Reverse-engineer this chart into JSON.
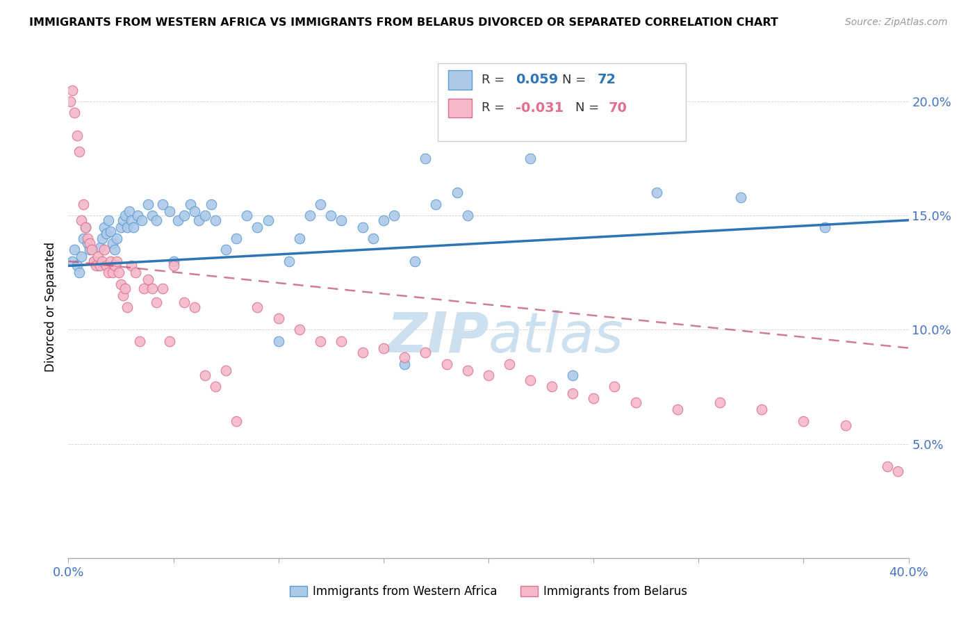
{
  "title": "IMMIGRANTS FROM WESTERN AFRICA VS IMMIGRANTS FROM BELARUS DIVORCED OR SEPARATED CORRELATION CHART",
  "source": "Source: ZipAtlas.com",
  "ylabel": "Divorced or Separated",
  "blue_scatter_x": [
    0.002,
    0.003,
    0.004,
    0.005,
    0.006,
    0.007,
    0.008,
    0.009,
    0.01,
    0.012,
    0.014,
    0.015,
    0.016,
    0.017,
    0.018,
    0.019,
    0.02,
    0.021,
    0.022,
    0.023,
    0.025,
    0.026,
    0.027,
    0.028,
    0.029,
    0.03,
    0.031,
    0.033,
    0.035,
    0.038,
    0.04,
    0.042,
    0.045,
    0.048,
    0.05,
    0.052,
    0.055,
    0.058,
    0.06,
    0.062,
    0.065,
    0.068,
    0.07,
    0.075,
    0.08,
    0.085,
    0.09,
    0.095,
    0.1,
    0.105,
    0.11,
    0.115,
    0.12,
    0.125,
    0.13,
    0.14,
    0.145,
    0.15,
    0.155,
    0.16,
    0.165,
    0.17,
    0.175,
    0.185,
    0.19,
    0.2,
    0.21,
    0.22,
    0.24,
    0.28,
    0.32,
    0.36
  ],
  "blue_scatter_y": [
    0.13,
    0.135,
    0.128,
    0.125,
    0.132,
    0.14,
    0.145,
    0.138,
    0.135,
    0.13,
    0.128,
    0.136,
    0.14,
    0.145,
    0.142,
    0.148,
    0.143,
    0.138,
    0.135,
    0.14,
    0.145,
    0.148,
    0.15,
    0.145,
    0.152,
    0.148,
    0.145,
    0.15,
    0.148,
    0.155,
    0.15,
    0.148,
    0.155,
    0.152,
    0.13,
    0.148,
    0.15,
    0.155,
    0.152,
    0.148,
    0.15,
    0.155,
    0.148,
    0.135,
    0.14,
    0.15,
    0.145,
    0.148,
    0.095,
    0.13,
    0.14,
    0.15,
    0.155,
    0.15,
    0.148,
    0.145,
    0.14,
    0.148,
    0.15,
    0.085,
    0.13,
    0.175,
    0.155,
    0.16,
    0.15,
    0.195,
    0.2,
    0.175,
    0.08,
    0.16,
    0.158,
    0.145
  ],
  "pink_scatter_x": [
    0.001,
    0.002,
    0.003,
    0.004,
    0.005,
    0.006,
    0.007,
    0.008,
    0.009,
    0.01,
    0.011,
    0.012,
    0.013,
    0.014,
    0.015,
    0.016,
    0.017,
    0.018,
    0.019,
    0.02,
    0.021,
    0.022,
    0.023,
    0.024,
    0.025,
    0.026,
    0.027,
    0.028,
    0.03,
    0.032,
    0.034,
    0.036,
    0.038,
    0.04,
    0.042,
    0.045,
    0.048,
    0.05,
    0.055,
    0.06,
    0.065,
    0.07,
    0.075,
    0.08,
    0.09,
    0.1,
    0.11,
    0.12,
    0.13,
    0.14,
    0.15,
    0.16,
    0.17,
    0.18,
    0.19,
    0.2,
    0.21,
    0.22,
    0.23,
    0.24,
    0.25,
    0.26,
    0.27,
    0.29,
    0.31,
    0.33,
    0.35,
    0.37,
    0.39,
    0.395
  ],
  "pink_scatter_y": [
    0.2,
    0.205,
    0.195,
    0.185,
    0.178,
    0.148,
    0.155,
    0.145,
    0.14,
    0.138,
    0.135,
    0.13,
    0.128,
    0.132,
    0.128,
    0.13,
    0.135,
    0.128,
    0.125,
    0.13,
    0.125,
    0.128,
    0.13,
    0.125,
    0.12,
    0.115,
    0.118,
    0.11,
    0.128,
    0.125,
    0.095,
    0.118,
    0.122,
    0.118,
    0.112,
    0.118,
    0.095,
    0.128,
    0.112,
    0.11,
    0.08,
    0.075,
    0.082,
    0.06,
    0.11,
    0.105,
    0.1,
    0.095,
    0.095,
    0.09,
    0.092,
    0.088,
    0.09,
    0.085,
    0.082,
    0.08,
    0.085,
    0.078,
    0.075,
    0.072,
    0.07,
    0.075,
    0.068,
    0.065,
    0.068,
    0.065,
    0.06,
    0.058,
    0.04,
    0.038
  ],
  "blue_line_x": [
    0.0,
    0.4
  ],
  "blue_line_y": [
    0.128,
    0.148
  ],
  "pink_line_x": [
    0.0,
    0.4
  ],
  "pink_line_y": [
    0.13,
    0.092
  ],
  "blue_color": "#adc9e8",
  "blue_edge_color": "#5b9bd5",
  "blue_line_color": "#2e75b6",
  "pink_color": "#f4b8c8",
  "pink_edge_color": "#e07090",
  "pink_line_color": "#c05070",
  "watermark_color": "#cce0f0",
  "xlim": [
    0.0,
    0.4
  ],
  "ylim": [
    0.0,
    0.22
  ],
  "xtick_positions": [
    0.0,
    0.05,
    0.1,
    0.15,
    0.2,
    0.25,
    0.3,
    0.35,
    0.4
  ],
  "ytick_positions": [
    0.05,
    0.1,
    0.15,
    0.2
  ],
  "legend_label_blue": "Immigrants from Western Africa",
  "legend_label_pink": "Immigrants from Belarus",
  "legend_r_blue": "0.059",
  "legend_n_blue": "72",
  "legend_r_pink": "-0.031",
  "legend_n_pink": "70",
  "tick_color": "#4472c4",
  "axis_color": "#4472c4"
}
